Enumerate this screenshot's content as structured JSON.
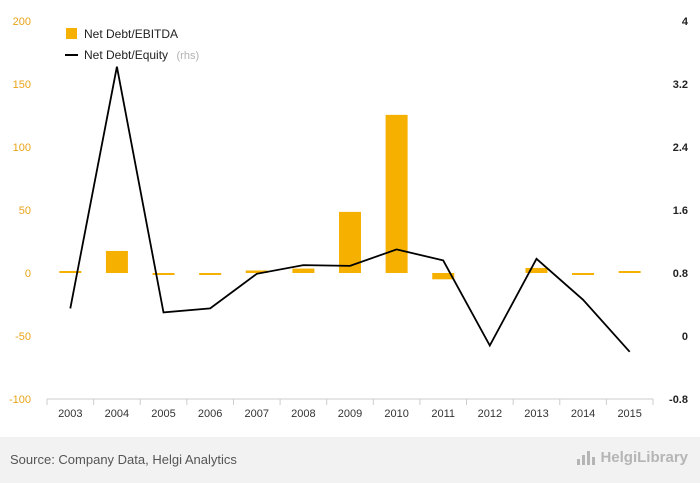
{
  "chart_data": {
    "type": "bar+line",
    "categories": [
      "2003",
      "2004",
      "2005",
      "2006",
      "2007",
      "2008",
      "2009",
      "2010",
      "2011",
      "2012",
      "2013",
      "2014",
      "2015"
    ],
    "series": [
      {
        "name": "Net Debt/EBITDA",
        "type": "bar",
        "axis": "left",
        "color": "#f5b000",
        "values": [
          1.2,
          17.5,
          -0.8,
          -1.5,
          2.0,
          3.5,
          48.5,
          125.5,
          -5.0,
          0,
          4.0,
          -0.5,
          0.5
        ]
      },
      {
        "name": "Net Debt/Equity",
        "suffix": "(rhs)",
        "type": "line",
        "axis": "right",
        "color": "#000000",
        "values": [
          0.35,
          3.42,
          0.3,
          0.35,
          0.79,
          0.9,
          0.89,
          1.1,
          0.96,
          -0.12,
          0.98,
          0.46,
          -0.2
        ]
      }
    ],
    "y_left": {
      "min": -100,
      "max": 200,
      "ticks": [
        "200",
        "150",
        "100",
        "50",
        "0",
        "-50",
        "-100"
      ],
      "tick_values": [
        200,
        150,
        100,
        50,
        0,
        -50,
        -100
      ]
    },
    "y_right": {
      "min": -0.8,
      "max": 4,
      "ticks": [
        "4",
        "3.2",
        "2.4",
        "1.6",
        "0.8",
        "0",
        "-0.8"
      ],
      "tick_values": [
        4,
        3.2,
        2.4,
        1.6,
        0.8,
        0,
        -0.8
      ]
    },
    "grid": false,
    "legend": "top-left"
  },
  "footer": {
    "source": "Source: Company Data, Helgi Analytics",
    "brand": "HelgiLibrary",
    "brand_icon": "bar-chart-icon"
  }
}
